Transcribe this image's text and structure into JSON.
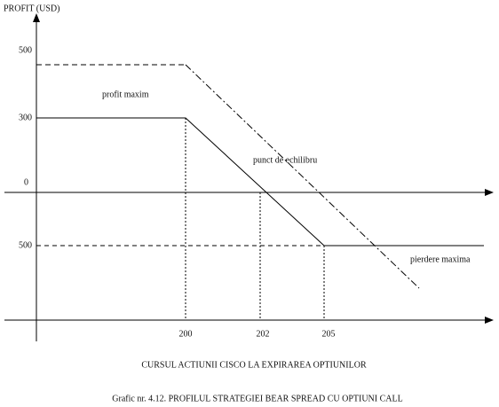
{
  "axis": {
    "y_title": "PROFIT (USD)",
    "y_labels": [
      "500",
      "300",
      "0",
      "500"
    ],
    "x_labels": [
      "200",
      "202",
      "205"
    ],
    "x_title": "CURSUL ACTIUNII CISCO LA EXPIRAREA OPTIUNILOR"
  },
  "annotations": {
    "max_profit": "profit maxim",
    "breakeven": "punct de echilibru",
    "max_loss": "pierdere maxima"
  },
  "caption": "Grafic nr. 4.12. PROFILUL STRATEGIEI BEAR SPREAD CU OPTIUNI CALL"
}
